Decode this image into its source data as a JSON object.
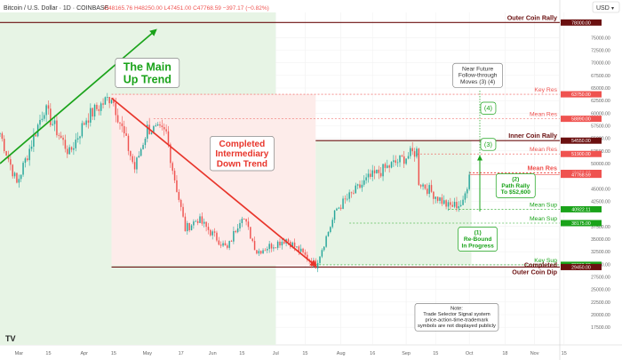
{
  "header": {
    "symbol": "Bitcoin / U.S. Dollar · 1D · COINBASE",
    "ohlc": "O48165.76  H48250.00  L47451.00  C47768.59  −397.17 (−0.82%)",
    "currency": "USD",
    "currency_arrow": "▾"
  },
  "colors": {
    "up": "#26a69a",
    "down": "#ef5350",
    "green_line": "#1aa31a",
    "red_line": "#e8352b",
    "dark_red": "#6b1010"
  },
  "chart_data": {
    "type": "candlestick",
    "y_axis": {
      "range": [
        14000,
        80000
      ],
      "ticks": [
        17500,
        20000,
        22500,
        25000,
        27500,
        30000,
        32500,
        35000,
        37500,
        42500,
        45000,
        50000,
        52500,
        55000,
        57500,
        60000,
        62500,
        65000,
        67500,
        70000,
        72500,
        75000
      ]
    },
    "x_axis": {
      "range": [
        "2021-02-20",
        "2021-11-13"
      ],
      "ticks": [
        {
          "date": "2021-03-01",
          "label": "Mar"
        },
        {
          "date": "2021-03-15",
          "label": "15"
        },
        {
          "date": "2021-04-01",
          "label": "Apr"
        },
        {
          "date": "2021-04-15",
          "label": "15"
        },
        {
          "date": "2021-05-01",
          "label": "May"
        },
        {
          "date": "2021-05-17",
          "label": "17"
        },
        {
          "date": "2021-06-01",
          "label": "Jun"
        },
        {
          "date": "2021-06-15",
          "label": "15"
        },
        {
          "date": "2021-07-01",
          "label": "Jul"
        },
        {
          "date": "2021-07-15",
          "label": "15"
        },
        {
          "date": "2021-08-01",
          "label": "Aug"
        },
        {
          "date": "2021-08-16",
          "label": "16"
        },
        {
          "date": "2021-09-01",
          "label": "Sep"
        },
        {
          "date": "2021-09-15",
          "label": "15"
        },
        {
          "date": "2021-10-01",
          "label": "Oct"
        },
        {
          "date": "2021-10-18",
          "label": "18"
        },
        {
          "date": "2021-11-01",
          "label": "Nov"
        },
        {
          "date": "2021-11-15",
          "label": "15"
        }
      ]
    },
    "price_path": [
      [
        "2021-02-20",
        56000
      ],
      [
        "2021-02-28",
        46000
      ],
      [
        "2021-03-13",
        61000
      ],
      [
        "2021-03-25",
        52000
      ],
      [
        "2021-04-02",
        59000
      ],
      [
        "2021-04-14",
        63500
      ],
      [
        "2021-04-25",
        49000
      ],
      [
        "2021-05-01",
        57000
      ],
      [
        "2021-05-10",
        56000
      ],
      [
        "2021-05-13",
        49000
      ],
      [
        "2021-05-19",
        37000
      ],
      [
        "2021-05-25",
        39000
      ],
      [
        "2021-06-08",
        33000
      ],
      [
        "2021-06-15",
        40000
      ],
      [
        "2021-06-22",
        32500
      ],
      [
        "2021-07-06",
        35000
      ],
      [
        "2021-07-20",
        29800
      ],
      [
        "2021-07-30",
        41000
      ],
      [
        "2021-08-14",
        47000
      ],
      [
        "2021-08-22",
        49000
      ],
      [
        "2021-09-06",
        52500
      ],
      [
        "2021-09-07",
        46500
      ],
      [
        "2021-09-21",
        41500
      ],
      [
        "2021-09-28",
        42000
      ],
      [
        "2021-10-01",
        47800
      ]
    ],
    "shaded_regions": [
      {
        "from": "2021-02-20",
        "to": "2021-07-01",
        "color": "#e7f4e5"
      },
      {
        "from": "2021-04-14",
        "to": "2021-07-20",
        "low": 29800,
        "high": 63750,
        "color": "#fdecea"
      },
      {
        "from": "2021-07-20",
        "to": "2021-10-02",
        "low": 29900,
        "high": 54550,
        "color": "#e7f4e5"
      }
    ],
    "levels": [
      {
        "name": "Outer Coin Rally",
        "price": 78000,
        "badge": "78000.00",
        "color": "#6b1010",
        "bold": true,
        "dashed": false,
        "from": "2021-02-20"
      },
      {
        "name": "Key Res",
        "price": 63750,
        "badge": "63750.00",
        "color": "#ef5350",
        "bold": false,
        "dashed": true,
        "from": "2021-04-14"
      },
      {
        "name": "Mean Res",
        "price": 58890,
        "badge": "58890.00",
        "color": "#ef5350",
        "bold": false,
        "dashed": true,
        "from": "2021-05-04"
      },
      {
        "name": "Inner Coin Rally",
        "price": 54550,
        "badge": "54550.00",
        "color": "#6b1010",
        "bold": true,
        "dashed": false,
        "from": "2021-07-20"
      },
      {
        "name": "Mean Res",
        "price": 51900,
        "badge": "51900.00",
        "color": "#ef5350",
        "bold": false,
        "dashed": true,
        "from": "2021-09-06"
      },
      {
        "name": "Mean Res",
        "price": 48150,
        "badge": "48150.00",
        "color": "#ef5350",
        "bold": true,
        "dashed": true,
        "from": "2021-10-01"
      },
      {
        "name": "",
        "price": 47768.59,
        "badge": "47768.59",
        "color": "#ef5350",
        "bold": false,
        "dashed": false,
        "from": "2021-10-01"
      },
      {
        "name": "Mean Sup",
        "price": 40922.11,
        "badge": "40922.11",
        "color": "#1aa31a",
        "bold": false,
        "dashed": true,
        "from": "2021-09-21"
      },
      {
        "name": "Mean Sup",
        "price": 38175,
        "badge": "38175.00",
        "color": "#1aa31a",
        "bold": false,
        "dashed": true,
        "from": "2021-08-05"
      },
      {
        "name": "Key Sup",
        "price": 29900,
        "badge": "29900.00",
        "color": "#1aa31a",
        "bold": false,
        "dashed": true,
        "from": "2021-07-20"
      },
      {
        "name": "Completed\nOuter Coin Dip",
        "price": 29450,
        "badge": "29450.00",
        "color": "#6b1010",
        "bold": true,
        "dashed": false,
        "from": "2021-04-14"
      }
    ],
    "trend_lines": [
      {
        "name": "The Main Up Trend",
        "color": "#1aa31a",
        "from": [
          "2021-02-20",
          50000
        ],
        "to": [
          "2021-05-05",
          76500
        ]
      },
      {
        "name": "Completed Intermediary Down Trend",
        "color": "#e8352b",
        "from": [
          "2021-04-14",
          63000
        ],
        "to": [
          "2021-07-20",
          29700
        ]
      }
    ],
    "annotations": [
      {
        "id": "main-up-trend",
        "text": "The Main\nUp Trend",
        "color": "#1aa31a",
        "at": [
          "2021-05-01",
          68000
        ]
      },
      {
        "id": "down-trend",
        "text": "Completed\nIntermediary\nDown Trend",
        "color": "#e8352b",
        "at": [
          "2021-06-15",
          52000
        ]
      },
      {
        "id": "near-future",
        "text": "Near Future\nFollow-through\nMoves (3) (4)",
        "color": "#333333",
        "at": [
          "2021-10-05",
          67500
        ]
      },
      {
        "id": "move-4",
        "text": "(4)",
        "color": "#1aa31a",
        "at": [
          "2021-10-10",
          61000
        ]
      },
      {
        "id": "move-3",
        "text": "(3)",
        "color": "#1aa31a",
        "at": [
          "2021-10-10",
          53800
        ]
      },
      {
        "id": "move-2",
        "text": "(2)\nPath Rally\nTo $52,600",
        "color": "#1aa31a",
        "at": [
          "2021-10-23",
          45600
        ]
      },
      {
        "id": "move-1",
        "text": "(1)\nRe-Bound\nIn Progress",
        "color": "#1aa31a",
        "at": [
          "2021-10-05",
          35000
        ]
      },
      {
        "id": "note",
        "text": "Note:\nTrade Selector Signal system\nprice-action-time-trademark\nsymbols are not displayed publicly",
        "color": "#222222",
        "at": [
          "2021-09-25",
          19500
        ]
      }
    ]
  }
}
